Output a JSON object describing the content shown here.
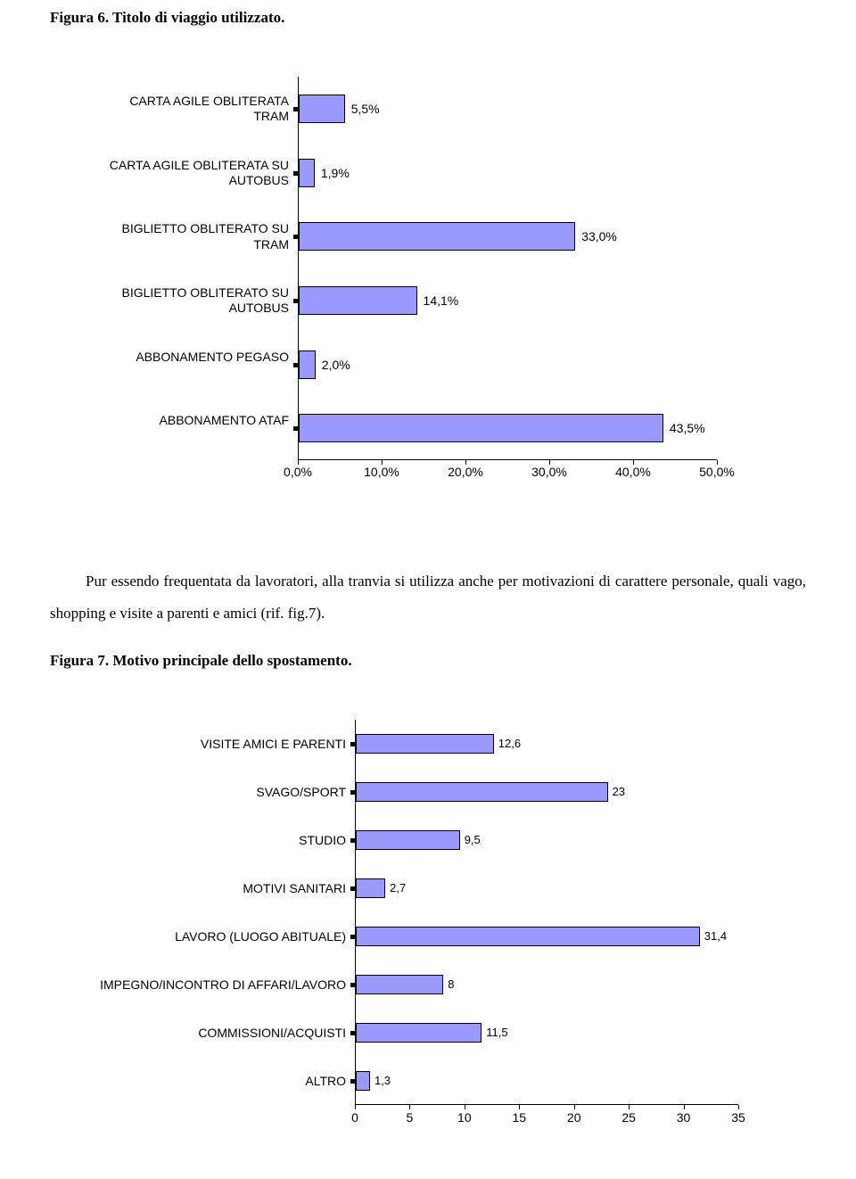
{
  "figure6": {
    "title": "Figura 6. Titolo di viaggio utilizzato.",
    "chart": {
      "type": "bar-horizontal",
      "bar_fill": "#9999ff",
      "bar_border": "#000000",
      "background_color": "#ffffff",
      "font_family": "Arial",
      "label_fontsize": 14,
      "xmin": 0.0,
      "xmax": 50.0,
      "xticks": [
        "0,0%",
        "10,0%",
        "20,0%",
        "30,0%",
        "40,0%",
        "50,0%"
      ],
      "xtick_values": [
        0,
        10,
        20,
        30,
        40,
        50
      ],
      "categories": [
        "CARTA AGILE OBLITERATA TRAM",
        "CARTA AGILE OBLITERATA SU AUTOBUS",
        "BIGLIETTO OBLITERATO SU TRAM",
        "BIGLIETTO OBLITERATO SU AUTOBUS",
        "ABBONAMENTO PEGASO",
        "ABBONAMENTO ATAF"
      ],
      "values": [
        5.5,
        1.9,
        33.0,
        14.1,
        2.0,
        43.5
      ],
      "value_labels": [
        "5,5%",
        "1,9%",
        "33,0%",
        "14,1%",
        "2,0%",
        "43,5%"
      ]
    }
  },
  "paragraph": "Pur essendo frequentata da lavoratori, alla tranvia si utilizza anche per motivazioni di carattere personale, quali vago, shopping e visite a parenti e amici (rif. fig.7).",
  "figure7": {
    "title": "Figura 7. Motivo principale dello spostamento.",
    "chart": {
      "type": "bar-horizontal",
      "bar_fill": "#9999ff",
      "bar_border": "#000000",
      "background_color": "#ffffff",
      "font_family": "Arial",
      "label_fontsize": 14,
      "xmin": 0,
      "xmax": 35,
      "xticks": [
        "0",
        "5",
        "10",
        "15",
        "20",
        "25",
        "30",
        "35"
      ],
      "xtick_values": [
        0,
        5,
        10,
        15,
        20,
        25,
        30,
        35
      ],
      "categories": [
        "VISITE AMICI E PARENTI",
        "SVAGO/SPORT",
        "STUDIO",
        "MOTIVI SANITARI",
        "LAVORO (LUOGO ABITUALE)",
        "IMPEGNO/INCONTRO DI AFFARI/LAVORO",
        "COMMISSIONI/ACQUISTI",
        "ALTRO"
      ],
      "values": [
        12.6,
        23,
        9.5,
        2.7,
        31.4,
        8,
        11.5,
        1.3
      ],
      "value_labels": [
        "12,6",
        "23",
        "9,5",
        "2,7",
        "31,4",
        "8",
        "11,5",
        "1,3"
      ]
    }
  }
}
